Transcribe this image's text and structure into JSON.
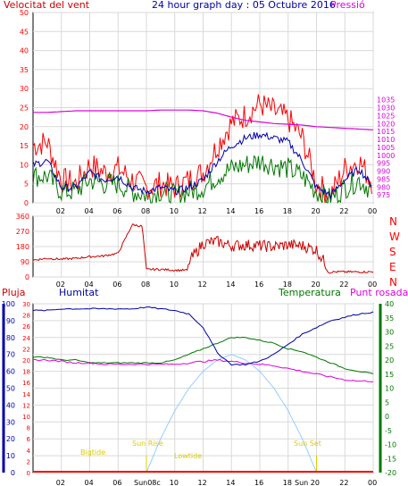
{
  "colors": {
    "red": "#ff0000",
    "darkred": "#cc0000",
    "blue": "#0000aa",
    "green": "#007700",
    "magenta": "#dd00dd",
    "sky": "#99ccff",
    "yellow": "#ddcc00",
    "grid": "#d9d9d9"
  },
  "chart_data": [
    {
      "type": "line",
      "title": "24 hour graph day : 05 Octubre 2016",
      "ylabel_left": "Velocitat del vent",
      "ylabel_right": "Pressió",
      "ylim_left": [
        0,
        50
      ],
      "yticks_left": [
        "0",
        "5",
        "10",
        "15",
        "20",
        "25",
        "30",
        "35",
        "40",
        "45",
        "50"
      ],
      "ylim_right": [
        970,
        1090
      ],
      "yticks_right": [
        "975",
        "980",
        "985",
        "990",
        "995",
        "1000",
        "1005",
        "1010",
        "1015",
        "1020",
        "1025",
        "1030",
        "1035"
      ],
      "xticks": [
        "02",
        "04",
        "06",
        "08",
        "10",
        "12",
        "14",
        "16",
        "18",
        "20",
        "22",
        "00"
      ],
      "hours": [
        0,
        1,
        2,
        3,
        4,
        5,
        6,
        7,
        8,
        9,
        10,
        11,
        12,
        13,
        14,
        15,
        16,
        17,
        18,
        19,
        20,
        21,
        22,
        23,
        24
      ],
      "series": [
        {
          "name": "gust",
          "values": [
            15,
            16,
            6,
            5,
            10,
            8,
            9,
            6,
            4,
            5,
            4,
            6,
            8,
            15,
            21,
            23,
            26,
            24,
            22,
            17,
            5,
            2,
            9,
            11,
            5
          ]
        },
        {
          "name": "average",
          "values": [
            10,
            11,
            4,
            4,
            8,
            6,
            7,
            4,
            3,
            4,
            3,
            4,
            6,
            11,
            15,
            17,
            18,
            17,
            16,
            11,
            4,
            2,
            6,
            9,
            4
          ]
        },
        {
          "name": "speed",
          "values": [
            7,
            7,
            3,
            3,
            6,
            5,
            5,
            3,
            2,
            3,
            2,
            3,
            4,
            7,
            9,
            10,
            11,
            10,
            9,
            7,
            3,
            1,
            4,
            6,
            3
          ]
        },
        {
          "name": "Pressió",
          "values": [
            1027,
            1027,
            1027.5,
            1028,
            1028,
            1028,
            1028,
            1028,
            1028,
            1028.5,
            1028.5,
            1028.5,
            1028,
            1026.5,
            1024,
            1022,
            1021,
            1020,
            1019.5,
            1019,
            1018,
            1017.5,
            1017,
            1016.5,
            1016
          ]
        }
      ]
    },
    {
      "type": "line",
      "yticks": [
        "0",
        "90",
        "180",
        "270",
        "360"
      ],
      "compass": [
        "N",
        "W",
        "S",
        "E",
        "N"
      ],
      "xticks": [
        "02",
        "04",
        "06",
        "08",
        "10",
        "12",
        "14",
        "16",
        "18",
        "20",
        "22",
        "00"
      ],
      "hours": [
        0,
        1,
        2,
        3,
        4,
        5,
        6,
        7,
        7.7,
        8,
        9,
        10,
        10.9,
        11,
        12,
        13,
        14,
        15,
        16,
        17,
        18,
        19,
        20,
        21,
        22,
        23,
        24
      ],
      "series": [
        {
          "name": "direction",
          "values": [
            100,
            110,
            105,
            110,
            120,
            125,
            140,
            310,
            300,
            45,
            45,
            40,
            40,
            90,
            200,
            210,
            185,
            190,
            185,
            180,
            190,
            185,
            160,
            30,
            30,
            30,
            30
          ]
        }
      ]
    },
    {
      "type": "line",
      "labels": {
        "pluja": "Pluja",
        "humitat": "Humitat",
        "temperatura": "Temperatura",
        "punt_rosada": "Punt rosada"
      },
      "yticks_hum": [
        "0",
        "10",
        "20",
        "30",
        "40",
        "50",
        "60",
        "70",
        "80",
        "90",
        "100"
      ],
      "yticks_rain": [
        "0",
        "2",
        "4",
        "6",
        "8",
        "10",
        "12",
        "14",
        "16",
        "18",
        "20",
        "22",
        "24",
        "26",
        "28",
        "30"
      ],
      "yticks_temp": [
        "-20",
        "-15",
        "-10",
        "-5",
        "0",
        "5",
        "10",
        "15",
        "20",
        "25",
        "30",
        "35",
        "40"
      ],
      "xticks": [
        "02",
        "04",
        "06",
        "08",
        "10",
        "12",
        "14",
        "16",
        "18",
        "20",
        "22",
        "00"
      ],
      "sun_labels": {
        "bigtide": "Bigtide",
        "sunrise": "Sun Rise",
        "lowtide": "Lowtide",
        "sunset": "Sun Set",
        "sun08c": "Sun08c",
        "sun20": "Sun 20"
      },
      "hours": [
        0,
        1,
        2,
        3,
        4,
        5,
        6,
        7,
        8,
        9,
        10,
        11,
        12,
        13,
        14,
        15,
        16,
        17,
        18,
        19,
        20,
        21,
        22,
        23,
        24
      ],
      "series": [
        {
          "name": "Humitat",
          "values": [
            96,
            96,
            97,
            97,
            97,
            97,
            97,
            97,
            98,
            97,
            96,
            94,
            86,
            71,
            64,
            64,
            66,
            70,
            76,
            82,
            86,
            90,
            92,
            94,
            95
          ]
        },
        {
          "name": "Temperatura",
          "values": [
            21,
            21,
            20,
            20,
            19,
            19,
            19,
            19,
            19,
            19,
            20,
            22,
            24,
            26,
            28,
            28,
            27,
            26,
            24,
            23,
            21,
            19,
            17,
            16,
            15
          ]
        },
        {
          "name": "Punt rosada",
          "values": [
            20,
            20,
            19.5,
            19,
            19,
            18.5,
            18.5,
            18.5,
            18.5,
            18.5,
            18.5,
            19,
            19.5,
            20,
            19.5,
            19,
            18.5,
            18,
            17,
            16,
            15,
            14,
            13,
            12.5,
            12.5
          ]
        },
        {
          "name": "Pluja",
          "values": [
            0,
            0,
            0,
            0,
            0,
            0,
            0,
            0,
            0,
            0,
            0,
            0,
            0,
            0,
            0,
            0,
            0,
            0,
            0,
            0,
            0,
            0,
            0,
            0,
            0
          ]
        },
        {
          "name": "solar",
          "values": [
            0,
            0,
            0,
            0,
            0,
            0,
            0,
            0,
            0,
            6,
            11,
            15,
            18,
            20,
            21,
            20,
            18,
            15,
            11,
            6,
            0,
            0,
            0,
            0,
            0
          ]
        }
      ]
    }
  ]
}
